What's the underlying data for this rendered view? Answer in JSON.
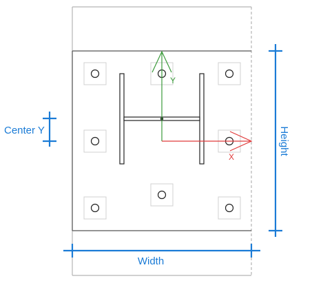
{
  "labels": {
    "width": "Width",
    "height": "Height",
    "center_y": "Center Y",
    "x_axis": "X",
    "y_axis": "Y"
  },
  "colors": {
    "dimension": "#1a7bd6",
    "x_axis": "#e03a3a",
    "y_axis": "#3a9a3a",
    "outline": "#555555",
    "frame": "#b5b5b5",
    "pad": "#d0d0d0"
  }
}
